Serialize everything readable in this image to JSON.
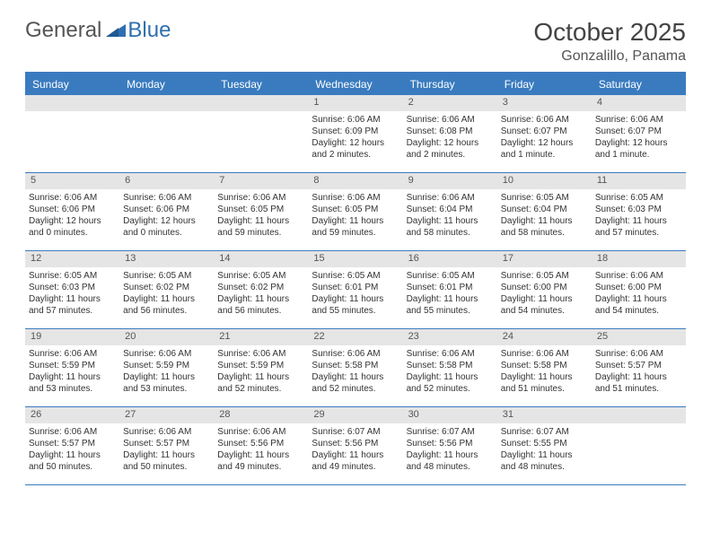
{
  "logo": {
    "general": "General",
    "blue": "Blue"
  },
  "title": {
    "month_year": "October 2025",
    "location": "Gonzalillo, Panama"
  },
  "colors": {
    "header_bg": "#3a7bbf",
    "header_text": "#ffffff",
    "daynum_bg": "#e5e5e5",
    "daynum_text": "#555555",
    "border": "#3a7bbf",
    "logo_blue": "#2f6fb0"
  },
  "day_names": [
    "Sunday",
    "Monday",
    "Tuesday",
    "Wednesday",
    "Thursday",
    "Friday",
    "Saturday"
  ],
  "weeks": [
    [
      {
        "num": "",
        "sunrise": "",
        "sunset": "",
        "daylight": ""
      },
      {
        "num": "",
        "sunrise": "",
        "sunset": "",
        "daylight": ""
      },
      {
        "num": "",
        "sunrise": "",
        "sunset": "",
        "daylight": ""
      },
      {
        "num": "1",
        "sunrise": "Sunrise: 6:06 AM",
        "sunset": "Sunset: 6:09 PM",
        "daylight": "Daylight: 12 hours and 2 minutes."
      },
      {
        "num": "2",
        "sunrise": "Sunrise: 6:06 AM",
        "sunset": "Sunset: 6:08 PM",
        "daylight": "Daylight: 12 hours and 2 minutes."
      },
      {
        "num": "3",
        "sunrise": "Sunrise: 6:06 AM",
        "sunset": "Sunset: 6:07 PM",
        "daylight": "Daylight: 12 hours and 1 minute."
      },
      {
        "num": "4",
        "sunrise": "Sunrise: 6:06 AM",
        "sunset": "Sunset: 6:07 PM",
        "daylight": "Daylight: 12 hours and 1 minute."
      }
    ],
    [
      {
        "num": "5",
        "sunrise": "Sunrise: 6:06 AM",
        "sunset": "Sunset: 6:06 PM",
        "daylight": "Daylight: 12 hours and 0 minutes."
      },
      {
        "num": "6",
        "sunrise": "Sunrise: 6:06 AM",
        "sunset": "Sunset: 6:06 PM",
        "daylight": "Daylight: 12 hours and 0 minutes."
      },
      {
        "num": "7",
        "sunrise": "Sunrise: 6:06 AM",
        "sunset": "Sunset: 6:05 PM",
        "daylight": "Daylight: 11 hours and 59 minutes."
      },
      {
        "num": "8",
        "sunrise": "Sunrise: 6:06 AM",
        "sunset": "Sunset: 6:05 PM",
        "daylight": "Daylight: 11 hours and 59 minutes."
      },
      {
        "num": "9",
        "sunrise": "Sunrise: 6:06 AM",
        "sunset": "Sunset: 6:04 PM",
        "daylight": "Daylight: 11 hours and 58 minutes."
      },
      {
        "num": "10",
        "sunrise": "Sunrise: 6:05 AM",
        "sunset": "Sunset: 6:04 PM",
        "daylight": "Daylight: 11 hours and 58 minutes."
      },
      {
        "num": "11",
        "sunrise": "Sunrise: 6:05 AM",
        "sunset": "Sunset: 6:03 PM",
        "daylight": "Daylight: 11 hours and 57 minutes."
      }
    ],
    [
      {
        "num": "12",
        "sunrise": "Sunrise: 6:05 AM",
        "sunset": "Sunset: 6:03 PM",
        "daylight": "Daylight: 11 hours and 57 minutes."
      },
      {
        "num": "13",
        "sunrise": "Sunrise: 6:05 AM",
        "sunset": "Sunset: 6:02 PM",
        "daylight": "Daylight: 11 hours and 56 minutes."
      },
      {
        "num": "14",
        "sunrise": "Sunrise: 6:05 AM",
        "sunset": "Sunset: 6:02 PM",
        "daylight": "Daylight: 11 hours and 56 minutes."
      },
      {
        "num": "15",
        "sunrise": "Sunrise: 6:05 AM",
        "sunset": "Sunset: 6:01 PM",
        "daylight": "Daylight: 11 hours and 55 minutes."
      },
      {
        "num": "16",
        "sunrise": "Sunrise: 6:05 AM",
        "sunset": "Sunset: 6:01 PM",
        "daylight": "Daylight: 11 hours and 55 minutes."
      },
      {
        "num": "17",
        "sunrise": "Sunrise: 6:05 AM",
        "sunset": "Sunset: 6:00 PM",
        "daylight": "Daylight: 11 hours and 54 minutes."
      },
      {
        "num": "18",
        "sunrise": "Sunrise: 6:06 AM",
        "sunset": "Sunset: 6:00 PM",
        "daylight": "Daylight: 11 hours and 54 minutes."
      }
    ],
    [
      {
        "num": "19",
        "sunrise": "Sunrise: 6:06 AM",
        "sunset": "Sunset: 5:59 PM",
        "daylight": "Daylight: 11 hours and 53 minutes."
      },
      {
        "num": "20",
        "sunrise": "Sunrise: 6:06 AM",
        "sunset": "Sunset: 5:59 PM",
        "daylight": "Daylight: 11 hours and 53 minutes."
      },
      {
        "num": "21",
        "sunrise": "Sunrise: 6:06 AM",
        "sunset": "Sunset: 5:59 PM",
        "daylight": "Daylight: 11 hours and 52 minutes."
      },
      {
        "num": "22",
        "sunrise": "Sunrise: 6:06 AM",
        "sunset": "Sunset: 5:58 PM",
        "daylight": "Daylight: 11 hours and 52 minutes."
      },
      {
        "num": "23",
        "sunrise": "Sunrise: 6:06 AM",
        "sunset": "Sunset: 5:58 PM",
        "daylight": "Daylight: 11 hours and 52 minutes."
      },
      {
        "num": "24",
        "sunrise": "Sunrise: 6:06 AM",
        "sunset": "Sunset: 5:58 PM",
        "daylight": "Daylight: 11 hours and 51 minutes."
      },
      {
        "num": "25",
        "sunrise": "Sunrise: 6:06 AM",
        "sunset": "Sunset: 5:57 PM",
        "daylight": "Daylight: 11 hours and 51 minutes."
      }
    ],
    [
      {
        "num": "26",
        "sunrise": "Sunrise: 6:06 AM",
        "sunset": "Sunset: 5:57 PM",
        "daylight": "Daylight: 11 hours and 50 minutes."
      },
      {
        "num": "27",
        "sunrise": "Sunrise: 6:06 AM",
        "sunset": "Sunset: 5:57 PM",
        "daylight": "Daylight: 11 hours and 50 minutes."
      },
      {
        "num": "28",
        "sunrise": "Sunrise: 6:06 AM",
        "sunset": "Sunset: 5:56 PM",
        "daylight": "Daylight: 11 hours and 49 minutes."
      },
      {
        "num": "29",
        "sunrise": "Sunrise: 6:07 AM",
        "sunset": "Sunset: 5:56 PM",
        "daylight": "Daylight: 11 hours and 49 minutes."
      },
      {
        "num": "30",
        "sunrise": "Sunrise: 6:07 AM",
        "sunset": "Sunset: 5:56 PM",
        "daylight": "Daylight: 11 hours and 48 minutes."
      },
      {
        "num": "31",
        "sunrise": "Sunrise: 6:07 AM",
        "sunset": "Sunset: 5:55 PM",
        "daylight": "Daylight: 11 hours and 48 minutes."
      },
      {
        "num": "",
        "sunrise": "",
        "sunset": "",
        "daylight": ""
      }
    ]
  ]
}
